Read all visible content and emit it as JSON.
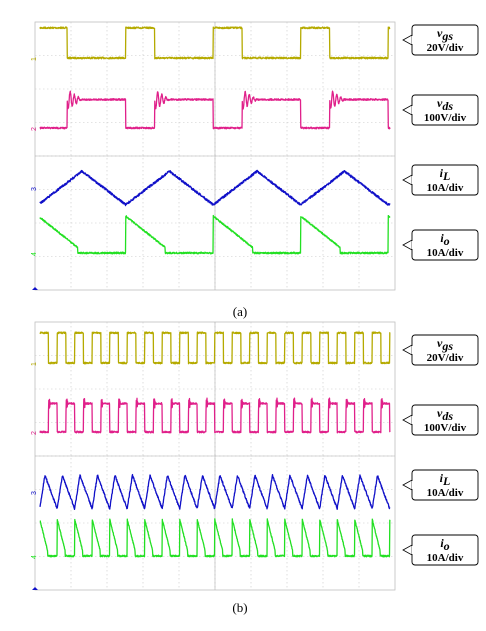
{
  "figure": {
    "panels": [
      {
        "caption": "(a)",
        "scope": {
          "divisions_x": 10,
          "divisions_y": 8
        }
      },
      {
        "caption": "(b)",
        "scope": {
          "divisions_x": 10,
          "divisions_y": 8
        }
      }
    ]
  },
  "chart_data": [
    {
      "type": "line",
      "caption": "(a)",
      "x_unit": "switching periods",
      "series": [
        {
          "name": "v_gs",
          "label_main": "v",
          "label_sub": "gs",
          "scale": "20V/div",
          "color": "#b5aa00",
          "kind": "gate",
          "periods": 4,
          "high_fraction": 0.33,
          "amplitude_div": 0.9
        },
        {
          "name": "v_ds",
          "label_main": "v",
          "label_sub": "ds",
          "scale": "100V/div",
          "color": "#e0208a",
          "kind": "drain",
          "periods": 4,
          "off_fraction": 0.33,
          "amplitude_div": 0.85
        },
        {
          "name": "i_L",
          "label_main": "i",
          "label_sub": "L",
          "scale": "10A/div",
          "color": "#1010c8",
          "kind": "triangle",
          "periods": 4,
          "rise_fraction": 0.5,
          "amplitude_div": 1.0
        },
        {
          "name": "i_o",
          "label_main": "i",
          "label_sub": "o",
          "scale": "10A/div",
          "color": "#22e022",
          "kind": "output",
          "periods": 4,
          "amplitude_div": 1.1
        }
      ]
    },
    {
      "type": "line",
      "caption": "(b)",
      "x_unit": "switching periods",
      "series": [
        {
          "name": "v_gs",
          "label_main": "v",
          "label_sub": "gs",
          "scale": "20V/div",
          "color": "#b5aa00",
          "kind": "gate",
          "periods": 20,
          "high_fraction": 0.5,
          "amplitude_div": 0.9
        },
        {
          "name": "v_ds",
          "label_main": "v",
          "label_sub": "ds",
          "scale": "100V/div",
          "color": "#e0208a",
          "kind": "drain",
          "periods": 20,
          "off_fraction": 0.5,
          "amplitude_div": 0.85
        },
        {
          "name": "i_L",
          "label_main": "i",
          "label_sub": "L",
          "scale": "10A/div",
          "color": "#1010c8",
          "kind": "triangle",
          "periods": 20,
          "rise_fraction": 0.3,
          "amplitude_div": 1.0
        },
        {
          "name": "i_o",
          "label_main": "i",
          "label_sub": "o",
          "scale": "10A/div",
          "color": "#22e022",
          "kind": "output",
          "periods": 20,
          "amplitude_div": 1.1
        }
      ]
    }
  ]
}
